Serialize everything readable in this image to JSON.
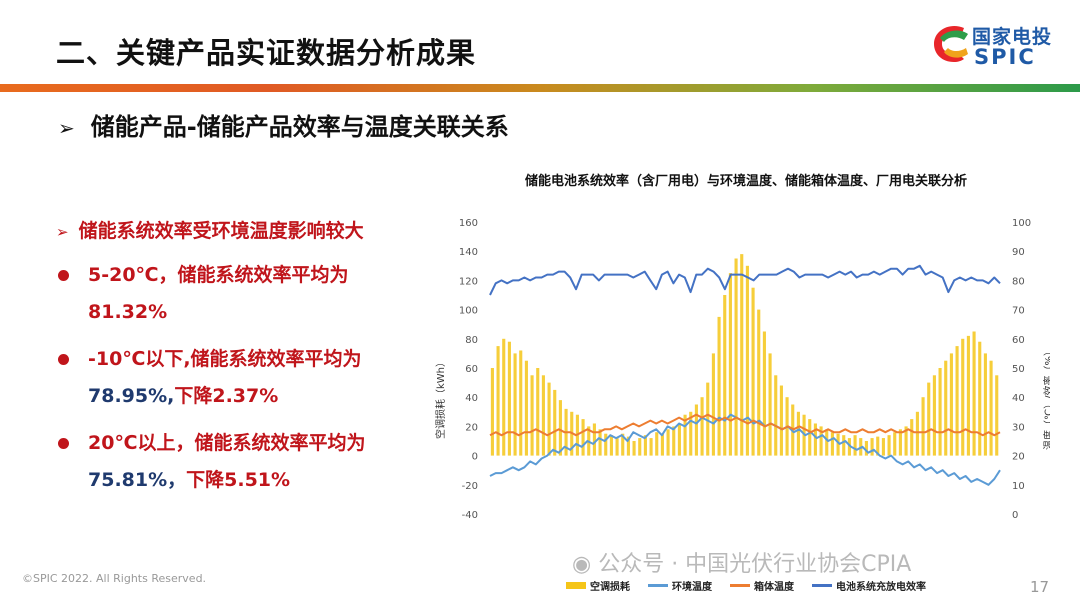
{
  "header": {
    "title": "二、关键产品实证数据分析成果",
    "logo_cn": "国家电投",
    "logo_en": "SPIC"
  },
  "subtitle": {
    "arrow": "➢",
    "text": "储能产品-储能产品效率与温度关联关系"
  },
  "bullets": {
    "head_arrow": "➢",
    "head": "储能系统效率受环境温度影响较大",
    "items": [
      {
        "part1": "5-20℃，储能系统效率平均为",
        "part2": "81.32%"
      },
      {
        "part1": "-10℃以下,储能系统效率平均为",
        "part2": "78.95%,",
        "part3": "下降2.37%"
      },
      {
        "part1": "20℃以上，储能系统效率平均为",
        "part2": "75.81%，",
        "part3": "下降5.51%"
      }
    ]
  },
  "footer": {
    "copyright": "©SPIC 2022. All Rights Reserved.",
    "page": "17",
    "watermark": "公众号 · 中国光伏行业协会CPIA"
  },
  "chart_data": {
    "type": "bar",
    "title": "储能电池系统效率（含厂用电）与环境温度、储能箱体温度、厂用电关联分析",
    "ylabel": "空调损耗（kWh）",
    "y2label": "温度（℃）/效率（%）",
    "ylim": [
      -40,
      160
    ],
    "y2lim": [
      0,
      100
    ],
    "yticks": [
      -40,
      -20,
      0,
      20,
      40,
      60,
      80,
      100,
      120,
      140,
      160
    ],
    "y2ticks": [
      0,
      10,
      20,
      30,
      40,
      50,
      60,
      70,
      80,
      90,
      100
    ],
    "series": [
      {
        "name": "空调损耗",
        "type": "bar",
        "axis": "left",
        "color": "#f5c518",
        "values": [
          60,
          75,
          80,
          78,
          70,
          72,
          65,
          55,
          60,
          55,
          50,
          45,
          38,
          32,
          30,
          28,
          25,
          20,
          22,
          18,
          15,
          14,
          12,
          15,
          13,
          10,
          12,
          14,
          12,
          16,
          15,
          18,
          20,
          22,
          28,
          30,
          35,
          40,
          50,
          70,
          95,
          110,
          125,
          135,
          138,
          130,
          115,
          100,
          85,
          70,
          55,
          48,
          40,
          35,
          30,
          28,
          25,
          22,
          20,
          18,
          16,
          15,
          14,
          12,
          14,
          12,
          10,
          12,
          13,
          12,
          14,
          16,
          18,
          20,
          25,
          30,
          40,
          50,
          55,
          60,
          65,
          70,
          75,
          80,
          82,
          85,
          78,
          70,
          65,
          55
        ]
      },
      {
        "name": "环境温度",
        "type": "line",
        "axis": "right",
        "color": "#5b9bd5",
        "values": [
          13,
          14,
          14,
          15,
          16,
          15,
          16,
          18,
          17,
          19,
          20,
          22,
          21,
          23,
          22,
          24,
          23,
          25,
          24,
          26,
          25,
          27,
          26,
          27,
          25,
          28,
          27,
          26,
          28,
          29,
          27,
          30,
          29,
          31,
          30,
          32,
          31,
          33,
          32,
          31,
          33,
          32,
          34,
          33,
          32,
          33,
          31,
          32,
          30,
          31,
          30,
          29,
          30,
          28,
          29,
          27,
          28,
          26,
          27,
          25,
          26,
          24,
          25,
          23,
          22,
          23,
          21,
          22,
          20,
          19,
          20,
          18,
          17,
          18,
          16,
          17,
          15,
          16,
          14,
          15,
          13,
          14,
          12,
          13,
          11,
          12,
          11,
          10,
          12,
          15
        ]
      },
      {
        "name": "箱体温度",
        "type": "line",
        "axis": "right",
        "color": "#ed7d31",
        "values": [
          27,
          28,
          27,
          28,
          28,
          27,
          28,
          28,
          29,
          28,
          27,
          28,
          29,
          28,
          28,
          27,
          28,
          29,
          28,
          28,
          29,
          29,
          30,
          29,
          30,
          31,
          30,
          31,
          32,
          31,
          32,
          31,
          32,
          33,
          32,
          33,
          34,
          33,
          34,
          33,
          32,
          33,
          32,
          33,
          32,
          31,
          32,
          31,
          30,
          31,
          30,
          29,
          30,
          29,
          30,
          29,
          28,
          29,
          28,
          29,
          28,
          28,
          29,
          28,
          28,
          29,
          28,
          28,
          29,
          28,
          29,
          28,
          28,
          29,
          28,
          28,
          28,
          29,
          28,
          28,
          29,
          28,
          28,
          29,
          28,
          28,
          27,
          28,
          27,
          28
        ]
      },
      {
        "name": "电池系统充放电效率",
        "type": "line",
        "axis": "right",
        "color": "#4472c4",
        "values": [
          75,
          79,
          80,
          79,
          80,
          80,
          81,
          80,
          81,
          81,
          82,
          82,
          83,
          83,
          81,
          77,
          82,
          82,
          82,
          80,
          82,
          82,
          82,
          82,
          82,
          81,
          82,
          83,
          80,
          77,
          82,
          83,
          79,
          82,
          81,
          76,
          82,
          82,
          84,
          83,
          81,
          77,
          82,
          82,
          82,
          81,
          80,
          82,
          82,
          82,
          82,
          83,
          84,
          83,
          81,
          82,
          82,
          82,
          82,
          81,
          82,
          83,
          82,
          83,
          81,
          82,
          82,
          83,
          82,
          83,
          84,
          84,
          82,
          84,
          84,
          85,
          82,
          83,
          82,
          81,
          76,
          80,
          81,
          80,
          81,
          80,
          80,
          79,
          81,
          79
        ]
      }
    ]
  }
}
